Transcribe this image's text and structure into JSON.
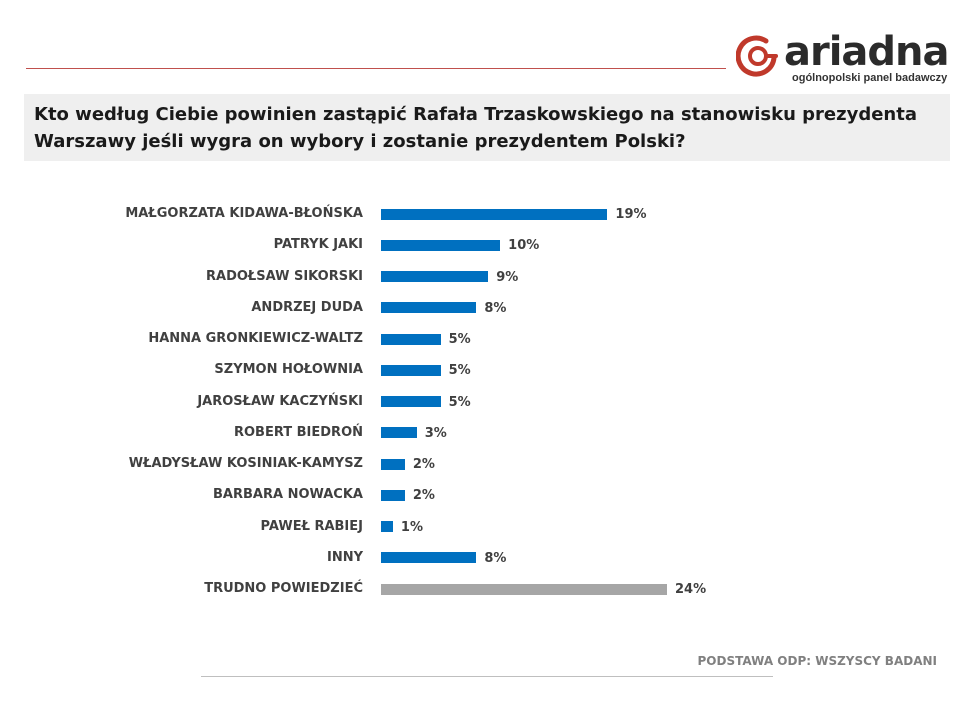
{
  "brand": {
    "name": "ariadna",
    "tagline": "ogólnopolski panel badawczy",
    "logo_icon": "ariadna-logo-icon",
    "accent_color": "#c0392b"
  },
  "question": "Kto według Ciebie powinien zastąpić Rafała Trzaskowskiego na stanowisku prezydenta Warszawy jeśli wygra on wybory i zostanie prezydentem Polski?",
  "footer": {
    "base_note": "PODSTAWA ODP: WSZYSCY BADANI"
  },
  "chart_data": {
    "type": "bar",
    "orientation": "horizontal",
    "title": "",
    "xlabel": "",
    "ylabel": "",
    "grid": false,
    "legend": false,
    "value_suffix": "%",
    "xlim": [
      0,
      24
    ],
    "categories": [
      "MAŁGORZATA KIDAWA-BŁOŃSKA",
      "PATRYK JAKI",
      "RADOŁSAW SIKORSKI",
      "ANDRZEJ DUDA",
      "HANNA GRONKIEWICZ-WALTZ",
      "SZYMON HOŁOWNIA",
      "JAROSŁAW KACZYŃSKI",
      "ROBERT BIEDROŃ",
      "WŁADYSŁAW KOSINIAK-KAMYSZ",
      "BARBARA NOWACKA",
      "PAWEŁ RABIEJ",
      "INNY",
      "TRUDNO POWIEDZIEĆ"
    ],
    "values": [
      19,
      10,
      9,
      8,
      5,
      5,
      5,
      3,
      2,
      2,
      1,
      8,
      24
    ],
    "value_labels": [
      "19%",
      "10%",
      "9%",
      "8%",
      "5%",
      "5%",
      "5%",
      "3%",
      "2%",
      "2%",
      "1%",
      "8%",
      "24%"
    ],
    "colors": [
      "#0070c0",
      "#0070c0",
      "#0070c0",
      "#0070c0",
      "#0070c0",
      "#0070c0",
      "#0070c0",
      "#0070c0",
      "#0070c0",
      "#0070c0",
      "#0070c0",
      "#0070c0",
      "#a6a6a6"
    ]
  }
}
